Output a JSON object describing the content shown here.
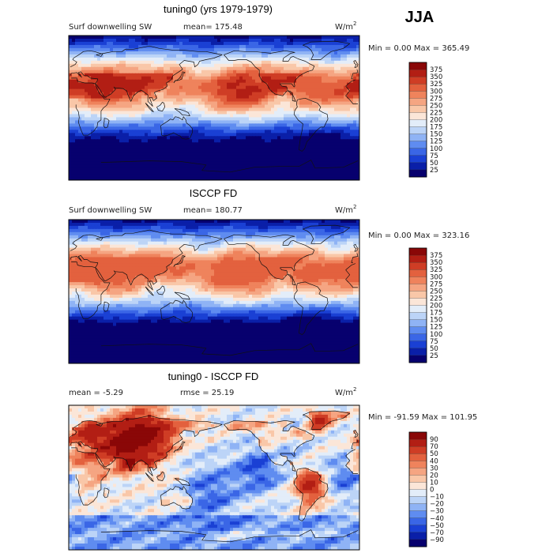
{
  "season": "JJA",
  "colors": {
    "positive_scale": [
      "#07006e",
      "#0a1fa8",
      "#1a40d4",
      "#3a66e6",
      "#5f8cf0",
      "#8fb3f5",
      "#bcd4f7",
      "#e3edf9",
      "#fbe6d8",
      "#f9c7a8",
      "#f5a582",
      "#ef835c",
      "#e3613e",
      "#cf3d25",
      "#b21e14",
      "#8a0707"
    ],
    "diff_scale": [
      "#07006e",
      "#0a1fa8",
      "#1a40d4",
      "#3a66e6",
      "#5f8cf0",
      "#8fb3f5",
      "#bcd4f7",
      "#e3edf9",
      "#fbe6d8",
      "#f9c7a8",
      "#f5a582",
      "#ef835c",
      "#e3613e",
      "#cf3d25",
      "#b21e14",
      "#8a0707"
    ]
  },
  "chart_data": [
    {
      "type": "heatmap",
      "title": "tuning0 (yrs 1979-1979)",
      "variable": "Surf downwelling SW",
      "mean_label": "mean= 175.48",
      "units": "W/m",
      "units_sup": "2",
      "min_max_label": "Min =    0.00 Max = 365.49",
      "min": 0.0,
      "max": 365.49,
      "mean": 175.48,
      "colorbar_levels": [
        "375",
        "350",
        "325",
        "300",
        "275",
        "250",
        "225",
        "200",
        "175",
        "150",
        "125",
        "100",
        "75",
        "50",
        "25"
      ],
      "field": "model",
      "scale": "positive"
    },
    {
      "type": "heatmap",
      "title": "ISCCP FD",
      "variable": "Surf downwelling SW",
      "mean_label": "mean= 180.77",
      "units": "W/m",
      "units_sup": "2",
      "min_max_label": "Min =    0.00 Max = 323.16",
      "min": 0.0,
      "max": 323.16,
      "mean": 180.77,
      "colorbar_levels": [
        "375",
        "350",
        "325",
        "300",
        "275",
        "250",
        "225",
        "200",
        "175",
        "150",
        "125",
        "100",
        "75",
        "50",
        "25"
      ],
      "field": "obs",
      "scale": "positive"
    },
    {
      "type": "heatmap",
      "title": "tuning0 - ISCCP FD",
      "mean_label": "mean =   -5.29",
      "rmse_label": "rmse =   25.19",
      "units": "W/m",
      "units_sup": "2",
      "min_max_label": "Min = -91.59 Max = 101.95",
      "min": -91.59,
      "max": 101.95,
      "mean": -5.29,
      "rmse": 25.19,
      "colorbar_levels": [
        "90",
        "70",
        "50",
        "40",
        "30",
        "20",
        "10",
        "0",
        "−10",
        "−20",
        "−30",
        "−40",
        "−50",
        "−70",
        "−90"
      ],
      "field": "diff",
      "scale": "diff"
    }
  ]
}
